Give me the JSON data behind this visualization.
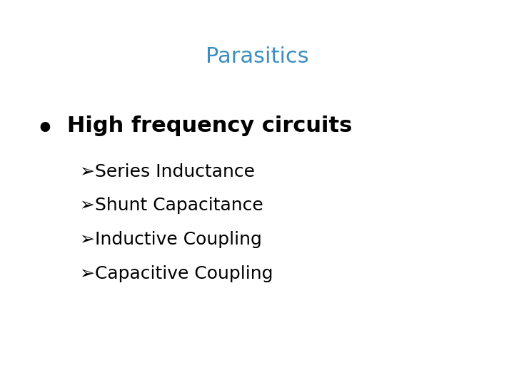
{
  "title": "Parasitics",
  "title_color": "#3A8FC0",
  "title_fontsize": 22,
  "background_color": "#ffffff",
  "bullet_text": "High frequency circuits",
  "bullet_fontsize": 22,
  "bullet_color": "#000000",
  "sub_items": [
    "➢Series Inductance",
    "➢Shunt Capacitance",
    "➢Inductive Coupling",
    "➢Capacitive Coupling"
  ],
  "sub_fontsize": 18
}
